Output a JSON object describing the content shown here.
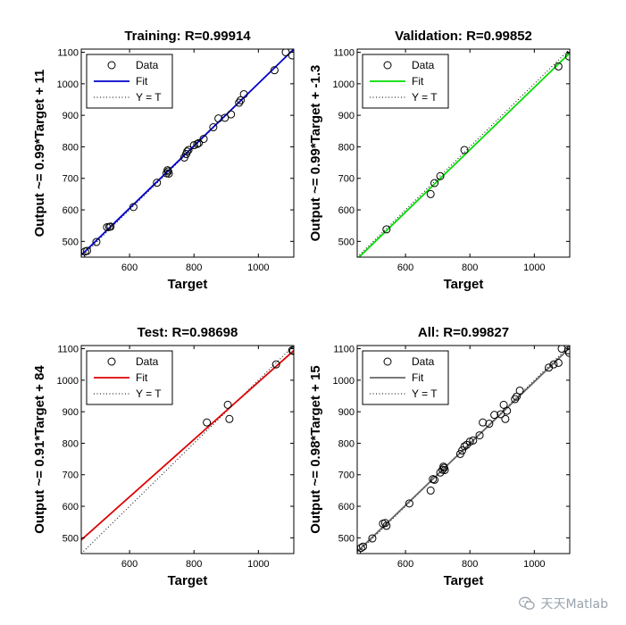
{
  "watermark": {
    "text": "天天Matlab",
    "icon": "wechat-icon"
  },
  "chart_data": [
    {
      "type": "scatter",
      "title": "Training: R=0.99914",
      "xlabel": "Target",
      "ylabel": "Output ~= 0.99*Target + 11",
      "xlim": [
        450,
        1110
      ],
      "ylim": [
        450,
        1110
      ],
      "xticks": [
        600,
        800,
        1000
      ],
      "yticks": [
        500,
        600,
        700,
        800,
        900,
        1000,
        1100
      ],
      "legend": [
        "Data",
        "Fit",
        "Y = T"
      ],
      "legend_position": "top-left",
      "fit_color": "#0000cc",
      "fit": {
        "slope": 0.99,
        "intercept": 11
      },
      "points": [
        [
          450,
          450
        ],
        [
          462,
          468
        ],
        [
          468,
          470
        ],
        [
          497,
          498
        ],
        [
          530,
          545
        ],
        [
          537,
          546
        ],
        [
          541,
          547
        ],
        [
          612,
          609
        ],
        [
          685,
          686
        ],
        [
          715,
          716
        ],
        [
          718,
          726
        ],
        [
          720,
          722
        ],
        [
          722,
          715
        ],
        [
          770,
          766
        ],
        [
          776,
          777
        ],
        [
          779,
          785
        ],
        [
          783,
          790
        ],
        [
          800,
          805
        ],
        [
          810,
          809
        ],
        [
          815,
          812
        ],
        [
          830,
          825
        ],
        [
          860,
          862
        ],
        [
          876,
          890
        ],
        [
          896,
          892
        ],
        [
          915,
          903
        ],
        [
          940,
          940
        ],
        [
          945,
          948
        ],
        [
          955,
          967
        ],
        [
          1050,
          1043
        ],
        [
          1085,
          1100
        ],
        [
          1105,
          1090
        ]
      ]
    },
    {
      "type": "scatter",
      "title": "Validation: R=0.99852",
      "xlabel": "Target",
      "ylabel": "Output ~= 0.99*Target + -1.3",
      "xlim": [
        450,
        1110
      ],
      "ylim": [
        450,
        1110
      ],
      "xticks": [
        600,
        800,
        1000
      ],
      "yticks": [
        500,
        600,
        700,
        800,
        900,
        1000,
        1100
      ],
      "legend": [
        "Data",
        "Fit",
        "Y = T"
      ],
      "legend_position": "top-left",
      "fit_color": "#00dd00",
      "fit": {
        "slope": 0.99,
        "intercept": -1.3
      },
      "points": [
        [
          541,
          538
        ],
        [
          678,
          650
        ],
        [
          690,
          685
        ],
        [
          708,
          707
        ],
        [
          783,
          790
        ],
        [
          1075,
          1055
        ],
        [
          1108,
          1087
        ]
      ]
    },
    {
      "type": "scatter",
      "title": "Test: R=0.98698",
      "xlabel": "Target",
      "ylabel": "Output ~= 0.91*Target + 84",
      "xlim": [
        450,
        1110
      ],
      "ylim": [
        450,
        1110
      ],
      "xticks": [
        600,
        800,
        1000
      ],
      "yticks": [
        500,
        600,
        700,
        800,
        900,
        1000,
        1100
      ],
      "legend": [
        "Data",
        "Fit",
        "Y = T"
      ],
      "legend_position": "top-left",
      "fit_color": "#dd0000",
      "fit": {
        "slope": 0.91,
        "intercept": 84
      },
      "points": [
        [
          840,
          866
        ],
        [
          905,
          922
        ],
        [
          910,
          877
        ],
        [
          1055,
          1050
        ],
        [
          1105,
          1095
        ],
        [
          1108,
          1093
        ]
      ]
    },
    {
      "type": "scatter",
      "title": "All: R=0.99827",
      "xlabel": "Target",
      "ylabel": "Output ~= 0.98*Target + 15",
      "xlim": [
        450,
        1110
      ],
      "ylim": [
        450,
        1110
      ],
      "xticks": [
        600,
        800,
        1000
      ],
      "yticks": [
        500,
        600,
        700,
        800,
        900,
        1000,
        1100
      ],
      "legend": [
        "Data",
        "Fit",
        "Y = T"
      ],
      "legend_position": "top-left",
      "fit_color": "#666666",
      "fit": {
        "slope": 0.98,
        "intercept": 15
      },
      "points": [
        [
          450,
          450
        ],
        [
          462,
          468
        ],
        [
          468,
          472
        ],
        [
          497,
          498
        ],
        [
          530,
          545
        ],
        [
          537,
          547
        ],
        [
          541,
          538
        ],
        [
          612,
          609
        ],
        [
          678,
          650
        ],
        [
          685,
          686
        ],
        [
          690,
          684
        ],
        [
          708,
          707
        ],
        [
          715,
          716
        ],
        [
          718,
          726
        ],
        [
          720,
          722
        ],
        [
          722,
          715
        ],
        [
          770,
          766
        ],
        [
          776,
          777
        ],
        [
          783,
          790
        ],
        [
          790,
          795
        ],
        [
          800,
          805
        ],
        [
          810,
          809
        ],
        [
          830,
          825
        ],
        [
          840,
          866
        ],
        [
          860,
          862
        ],
        [
          876,
          890
        ],
        [
          896,
          892
        ],
        [
          905,
          922
        ],
        [
          910,
          877
        ],
        [
          915,
          903
        ],
        [
          940,
          940
        ],
        [
          945,
          948
        ],
        [
          955,
          967
        ],
        [
          1045,
          1040
        ],
        [
          1060,
          1050
        ],
        [
          1075,
          1055
        ],
        [
          1085,
          1100
        ],
        [
          1105,
          1095
        ],
        [
          1108,
          1087
        ]
      ]
    }
  ]
}
